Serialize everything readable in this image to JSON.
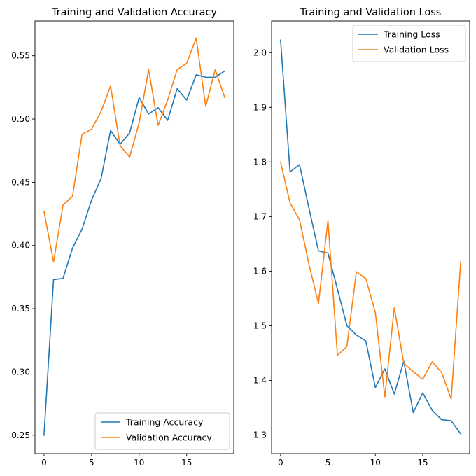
{
  "chart_data": [
    {
      "type": "line",
      "title": "Training and Validation Accuracy",
      "xlabel": "",
      "ylabel": "",
      "x": [
        0,
        1,
        2,
        3,
        4,
        5,
        6,
        7,
        8,
        9,
        10,
        11,
        12,
        13,
        14,
        15,
        16,
        17,
        18,
        19
      ],
      "xlim": [
        -0.95,
        19.95
      ],
      "ylim": [
        0.2355,
        0.5775
      ],
      "xticks": [
        0,
        5,
        10,
        15
      ],
      "xtick_labels": [
        "0",
        "5",
        "10",
        "15"
      ],
      "yticks": [
        0.25,
        0.3,
        0.35,
        0.4,
        0.45,
        0.5,
        0.55
      ],
      "ytick_labels": [
        "0.25",
        "0.30",
        "0.35",
        "0.40",
        "0.45",
        "0.50",
        "0.55"
      ],
      "grid": false,
      "legend": "lower-right",
      "series": [
        {
          "name": "Training Accuracy",
          "color": "#1f77b4",
          "values": [
            0.25,
            0.373,
            0.374,
            0.398,
            0.413,
            0.436,
            0.453,
            0.491,
            0.48,
            0.489,
            0.517,
            0.504,
            0.509,
            0.499,
            0.524,
            0.515,
            0.535,
            0.533,
            0.533,
            0.538
          ]
        },
        {
          "name": "Validation Accuracy",
          "color": "#ff7f0e",
          "values": [
            0.427,
            0.387,
            0.432,
            0.439,
            0.488,
            0.492,
            0.506,
            0.526,
            0.479,
            0.47,
            0.497,
            0.539,
            0.495,
            0.515,
            0.539,
            0.544,
            0.564,
            0.51,
            0.539,
            0.517
          ]
        }
      ]
    },
    {
      "type": "line",
      "title": "Training and Validation Loss",
      "xlabel": "",
      "ylabel": "",
      "x": [
        0,
        1,
        2,
        3,
        4,
        5,
        6,
        7,
        8,
        9,
        10,
        11,
        12,
        13,
        14,
        15,
        16,
        17,
        18,
        19
      ],
      "xlim": [
        -0.95,
        19.95
      ],
      "ylim": [
        1.266,
        2.058
      ],
      "xticks": [
        0,
        5,
        10,
        15
      ],
      "xtick_labels": [
        "0",
        "5",
        "10",
        "15"
      ],
      "yticks": [
        1.3,
        1.4,
        1.5,
        1.6,
        1.7,
        1.8,
        1.9,
        2.0
      ],
      "ytick_labels": [
        "1.3",
        "1.4",
        "1.5",
        "1.6",
        "1.7",
        "1.8",
        "1.9",
        "2.0"
      ],
      "grid": false,
      "legend": "upper-right",
      "series": [
        {
          "name": "Training Loss",
          "color": "#1f77b4",
          "values": [
            2.023,
            1.782,
            1.795,
            1.715,
            1.637,
            1.633,
            1.567,
            1.5,
            1.483,
            1.472,
            1.387,
            1.421,
            1.375,
            1.435,
            1.341,
            1.377,
            1.345,
            1.328,
            1.326,
            1.302
          ]
        },
        {
          "name": "Validation Loss",
          "color": "#ff7f0e",
          "values": [
            1.8,
            1.725,
            1.694,
            1.612,
            1.541,
            1.693,
            1.446,
            1.462,
            1.599,
            1.586,
            1.524,
            1.37,
            1.533,
            1.431,
            1.416,
            1.402,
            1.434,
            1.414,
            1.366,
            1.617
          ]
        }
      ]
    }
  ]
}
